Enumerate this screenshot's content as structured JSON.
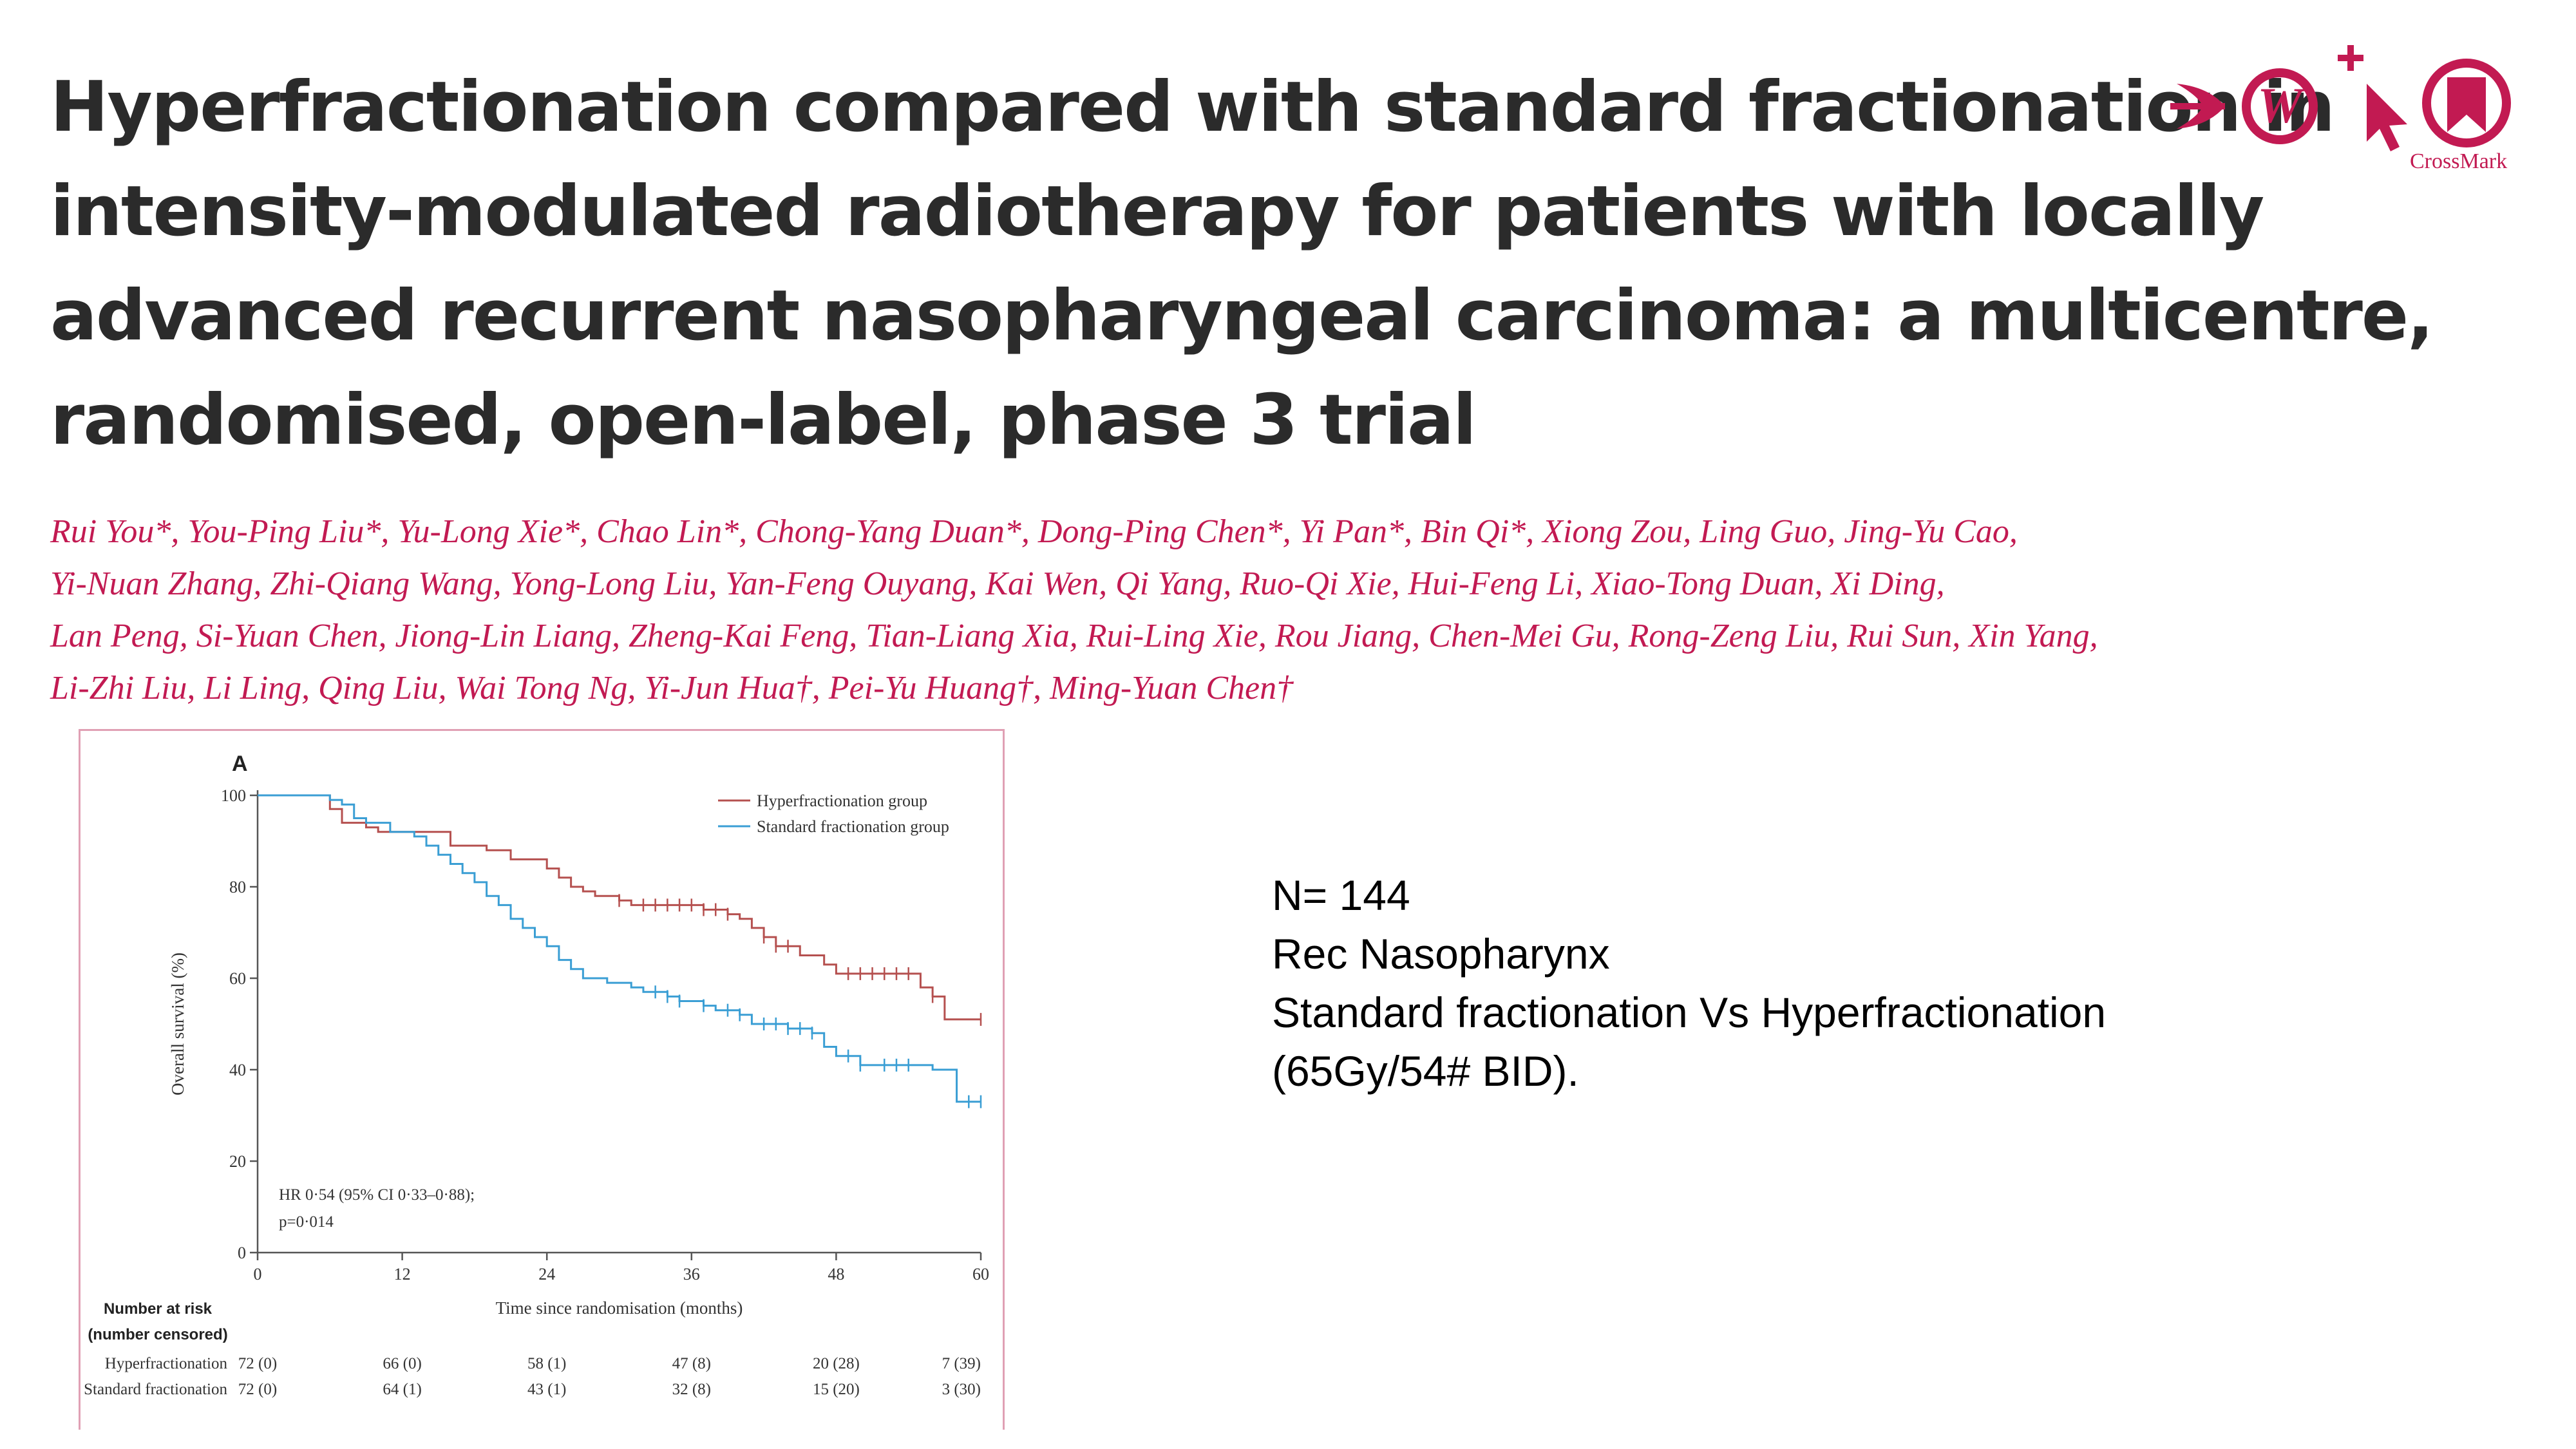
{
  "title_lines": [
    "Hyperfractionation compared with standard fractionation in",
    "intensity-modulated radiotherapy for patients with locally",
    "advanced recurrent nasopharyngeal carcinoma: a multicentre,",
    "randomised, open-label, phase 3 trial"
  ],
  "author_lines": [
    "Rui You*, You-Ping Liu*, Yu-Long Xie*, Chao Lin*, Chong-Yang Duan*, Dong-Ping Chen*, Yi Pan*, Bin Qi*, Xiong Zou, Ling Guo, Jing-Yu Cao,",
    "Yi-Nuan Zhang, Zhi-Qiang Wang, Yong-Long Liu, Yan-Feng Ouyang, Kai Wen, Qi Yang, Ruo-Qi Xie, Hui-Feng Li, Xiao-Tong Duan, Xi Ding,",
    "Lan Peng, Si-Yuan Chen, Jiong-Lin Liang, Zheng-Kai Feng, Tian-Liang Xia, Rui-Ling Xie, Rou Jiang, Chen-Mei Gu, Rong-Zeng Liu, Rui Sun, Xin Yang,",
    "Li-Zhi Liu, Li Ling, Qing Liu, Wai Tong Ng, Yi-Jun Hua†, Pei-Yu Huang†, Ming-Yuan Chen†"
  ],
  "crossmark": {
    "label": "CrossMark",
    "color": "#c21a52"
  },
  "summary": {
    "lines": [
      "N= 144",
      "Rec Nasopharynx",
      "Standard fractionation Vs Hyperfractionation",
      "(65Gy/54# BID)."
    ]
  },
  "chart_data": {
    "type": "line",
    "panel_label": "A",
    "xlabel": "Time since randomisation (months)",
    "ylabel": "Overall survival (%)",
    "xlim": [
      0,
      60
    ],
    "ylim": [
      0,
      100
    ],
    "x_ticks": [
      0,
      12,
      24,
      36,
      48,
      60
    ],
    "y_ticks": [
      0,
      20,
      40,
      60,
      80,
      100
    ],
    "grid": false,
    "legend_position": "top-right",
    "annotation": [
      "HR 0·54 (95% CI 0·33–0·88);",
      "p=0·014"
    ],
    "series": [
      {
        "name": "Hyperfractionation group",
        "color": "#b5504f",
        "step_points": [
          [
            0,
            100
          ],
          [
            5,
            100
          ],
          [
            6,
            97
          ],
          [
            7,
            94
          ],
          [
            9,
            93
          ],
          [
            10,
            92
          ],
          [
            12,
            92
          ],
          [
            16,
            89
          ],
          [
            19,
            88
          ],
          [
            21,
            86
          ],
          [
            24,
            84
          ],
          [
            25,
            82
          ],
          [
            26,
            80
          ],
          [
            27,
            79
          ],
          [
            28,
            78
          ],
          [
            30,
            77
          ],
          [
            31,
            76
          ],
          [
            33,
            76
          ],
          [
            35,
            76
          ],
          [
            37,
            75
          ],
          [
            39,
            74
          ],
          [
            40,
            73
          ],
          [
            41,
            71
          ],
          [
            42,
            69
          ],
          [
            43,
            67
          ],
          [
            45,
            65
          ],
          [
            47,
            63
          ],
          [
            48,
            61
          ],
          [
            55,
            58
          ],
          [
            56,
            56
          ],
          [
            57,
            51
          ],
          [
            60,
            51
          ]
        ],
        "censor_x": [
          30,
          32,
          33,
          34,
          35,
          36,
          37,
          38,
          39,
          42,
          43,
          44,
          49,
          50,
          51,
          52,
          53,
          54,
          56,
          60
        ]
      },
      {
        "name": "Standard fractionation group",
        "color": "#3a9ed4",
        "step_points": [
          [
            0,
            100
          ],
          [
            6,
            99
          ],
          [
            7,
            98
          ],
          [
            8,
            95
          ],
          [
            9,
            94
          ],
          [
            11,
            92
          ],
          [
            13,
            91
          ],
          [
            14,
            89
          ],
          [
            15,
            87
          ],
          [
            16,
            85
          ],
          [
            17,
            83
          ],
          [
            18,
            81
          ],
          [
            19,
            78
          ],
          [
            20,
            76
          ],
          [
            21,
            73
          ],
          [
            22,
            71
          ],
          [
            23,
            69
          ],
          [
            24,
            67
          ],
          [
            25,
            64
          ],
          [
            26,
            62
          ],
          [
            27,
            60
          ],
          [
            29,
            59
          ],
          [
            31,
            58
          ],
          [
            32,
            57
          ],
          [
            34,
            56
          ],
          [
            35,
            55
          ],
          [
            36,
            55
          ],
          [
            37,
            54
          ],
          [
            38,
            53
          ],
          [
            40,
            52
          ],
          [
            41,
            50
          ],
          [
            44,
            49
          ],
          [
            46,
            48
          ],
          [
            47,
            45
          ],
          [
            48,
            43
          ],
          [
            50,
            41
          ],
          [
            56,
            40
          ],
          [
            58,
            33
          ],
          [
            60,
            33
          ]
        ],
        "censor_x": [
          33,
          34,
          35,
          37,
          39,
          40,
          42,
          43,
          44,
          45,
          46,
          49,
          50,
          52,
          53,
          54,
          59,
          60
        ]
      }
    ],
    "risk_table": {
      "header": [
        "Number at risk",
        "(number censored)"
      ],
      "rows": [
        {
          "label": "Hyperfractionation",
          "values": [
            "72 (0)",
            "66 (0)",
            "58 (1)",
            "47 (8)",
            "20 (28)",
            "7 (39)"
          ]
        },
        {
          "label": "Standard fractionation",
          "values": [
            "72 (0)",
            "64 (1)",
            "43 (1)",
            "32 (8)",
            "15 (20)",
            "3 (30)"
          ]
        }
      ]
    }
  }
}
